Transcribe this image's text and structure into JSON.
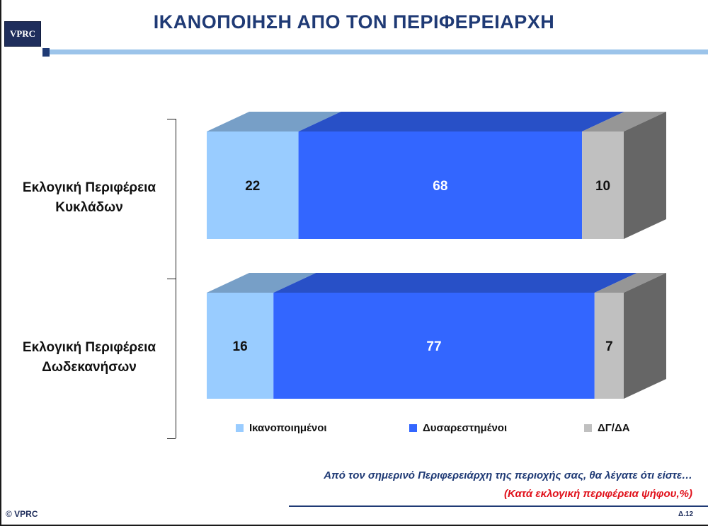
{
  "header": {
    "logo_text": "VPRC",
    "title": "ΙΚΑΝΟΠΟΙΗΣΗ ΑΠΟ ΤΟΝ ΠΕΡΙΦΕΡΕΙΑΡΧΗ"
  },
  "chart_data": {
    "type": "bar",
    "orientation": "horizontal",
    "stacked": true,
    "three_d": true,
    "unit": "%",
    "categories": [
      [
        "Εκλογική Περιφέρεια",
        "Κυκλάδων"
      ],
      [
        "Εκλογική Περιφέρεια",
        "Δωδεκανήσων"
      ]
    ],
    "series": [
      {
        "name": "Ικανοποιημένοι",
        "values": [
          22,
          16
        ],
        "color": "#99ccff",
        "label_color": "#111111"
      },
      {
        "name": "Δυσαρεστημένοι",
        "values": [
          68,
          77
        ],
        "color": "#3366ff",
        "label_color": "#ffffff"
      },
      {
        "name": "ΔΓ/ΔΑ",
        "values": [
          10,
          7
        ],
        "color": "#c0c0c0",
        "label_color": "#111111"
      }
    ],
    "xlim": [
      0,
      100
    ],
    "grid": false,
    "legend_position": "bottom"
  },
  "footer": {
    "question": "Από τον σημερινό Περιφερειάρχη της περιοχής σας, θα λέγατε ότι είστε…",
    "note": "(Κατά εκλογική περιφέρεια ψήφου,%)",
    "copyright": "© VPRC",
    "page": "Δ.12"
  }
}
